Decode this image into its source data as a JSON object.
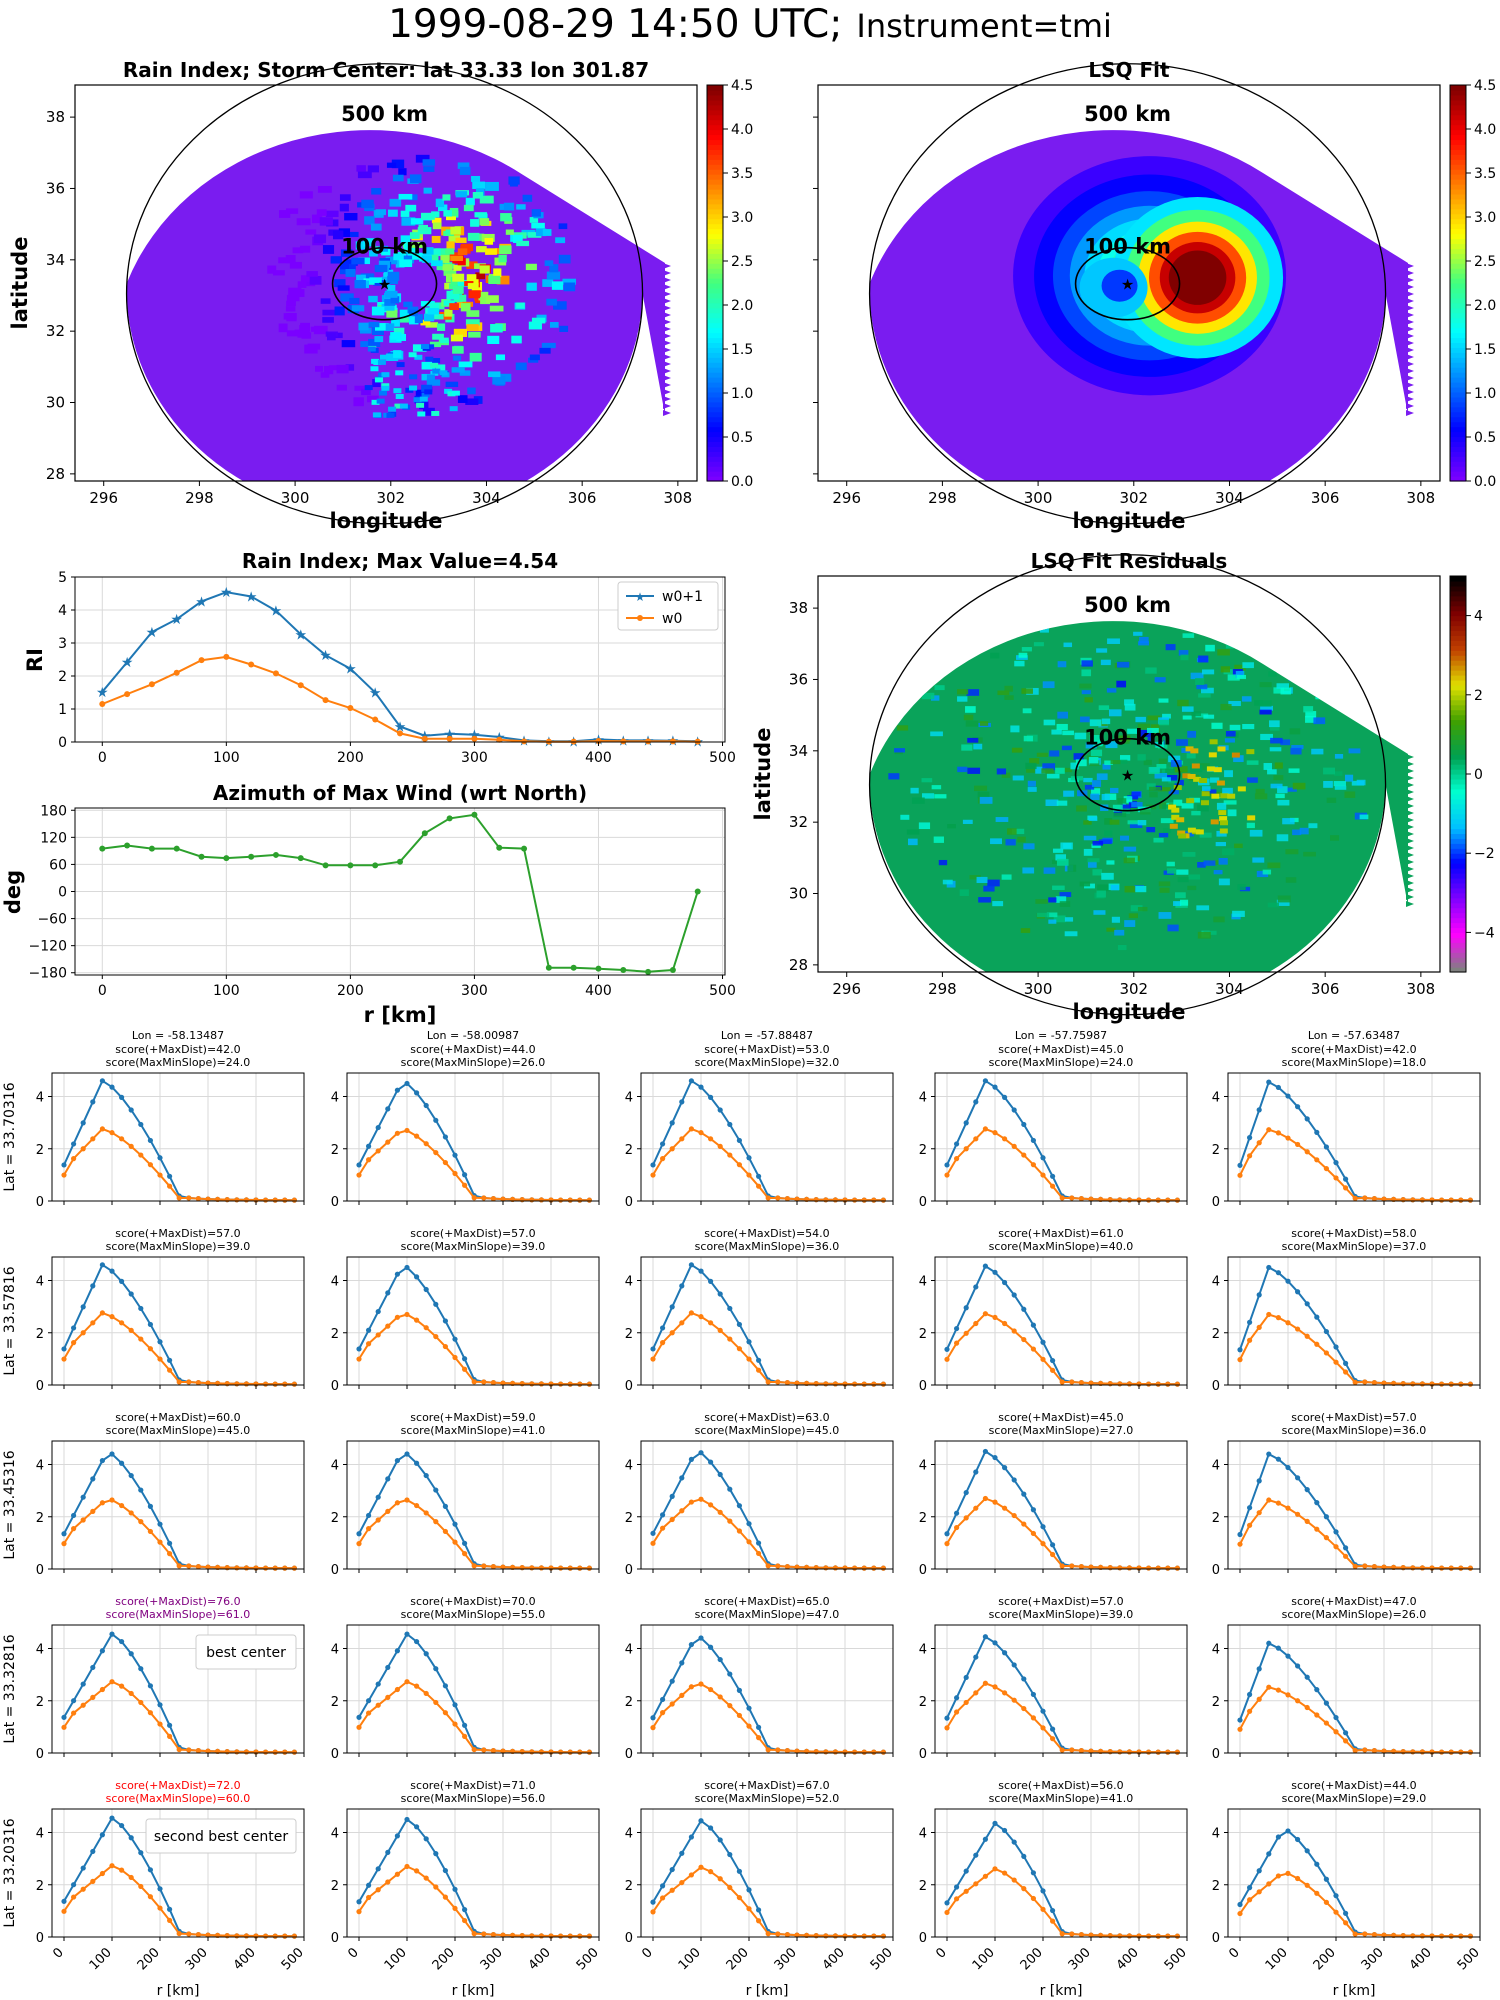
{
  "figure": {
    "title_main": "1999-08-29 14:50 UTC;",
    "title_instrument": "Instrument=tmi"
  },
  "colors": {
    "w0p1": "#1f77b4",
    "w0": "#ff7f0e",
    "azimuth": "#2ca02c",
    "rain_bg": "#7a1cf0",
    "resid_bg": "#0aa35a",
    "grid": "#d9d9d9",
    "best": "#800080",
    "second": "#ff0000"
  },
  "jet_stops": [
    "#7a00ff",
    "#0000ff",
    "#0080ff",
    "#00ffff",
    "#40ff80",
    "#ffff00",
    "#ff8000",
    "#ff0000",
    "#800000"
  ],
  "resid_stops": [
    "#808080",
    "#ff00ff",
    "#8000ff",
    "#0000ff",
    "#00c0ff",
    "#00ffd0",
    "#00a050",
    "#40a000",
    "#e0e000",
    "#c04000",
    "#800000",
    "#000000"
  ],
  "map_panels": [
    {
      "title": "Rain Index; Storm Center: lat 33.33 lon 301.87",
      "kind": "rain",
      "xlabel": "longitude",
      "ylabel": "latitude",
      "show_ylabel": true,
      "show_yticks": true
    },
    {
      "title": "LSQ Fit",
      "kind": "fit",
      "xlabel": "longitude",
      "ylabel": "",
      "show_ylabel": false,
      "show_yticks": false
    },
    {
      "title": "LSQ Fit Residuals",
      "kind": "resid",
      "xlabel": "longitude",
      "ylabel": "latitude",
      "show_ylabel": true,
      "show_yticks": true
    }
  ],
  "map_axes": {
    "xticks": [
      296,
      298,
      300,
      302,
      304,
      306,
      308
    ],
    "yticks": [
      28,
      30,
      32,
      34,
      36,
      38
    ],
    "xlim": [
      295.4,
      308.4
    ],
    "ylim": [
      27.8,
      38.9
    ],
    "center": [
      301.87,
      33.33
    ],
    "ring_500_label": "500 km",
    "ring_100_label": "100 km",
    "colorbar_rain_ticks": [
      "0.0",
      "0.5",
      "1.0",
      "1.5",
      "2.0",
      "2.5",
      "3.0",
      "3.5",
      "4.0",
      "4.5"
    ],
    "colorbar_rain_range": [
      0,
      4.5
    ],
    "colorbar_resid_ticks": [
      "−4",
      "−2",
      "0",
      "2",
      "4"
    ],
    "colorbar_resid_range": [
      -5,
      5
    ]
  },
  "chart_data": [
    {
      "type": "line",
      "title": "Rain Index; Max Value=4.54",
      "ylabel": "RI",
      "xlabel": "",
      "xlim": [
        -22,
        502
      ],
      "ylim": [
        0,
        5
      ],
      "yticks": [
        0,
        1,
        2,
        3,
        4,
        5
      ],
      "xticks": [
        0,
        100,
        200,
        300,
        400,
        500
      ],
      "legend_position": "upper right",
      "x": [
        0,
        20,
        40,
        60,
        80,
        100,
        120,
        140,
        160,
        180,
        200,
        220,
        240,
        260,
        280,
        300,
        320,
        340,
        360,
        380,
        400,
        420,
        440,
        460,
        480
      ],
      "series": [
        {
          "name": "w0+1",
          "marker": "star",
          "values": [
            1.52,
            2.42,
            3.33,
            3.72,
            4.26,
            4.54,
            4.41,
            3.98,
            3.26,
            2.63,
            2.22,
            1.5,
            0.47,
            0.19,
            0.25,
            0.22,
            0.15,
            0.05,
            0.02,
            0.02,
            0.08,
            0.05,
            0.05,
            0.04,
            0.02
          ]
        },
        {
          "name": "w0",
          "marker": "dot",
          "values": [
            1.15,
            1.45,
            1.75,
            2.1,
            2.48,
            2.58,
            2.35,
            2.08,
            1.72,
            1.27,
            1.03,
            0.68,
            0.26,
            0.1,
            0.1,
            0.1,
            0.07,
            0.02,
            0.01,
            0.01,
            0.03,
            0.02,
            0.02,
            0.02,
            0.01
          ]
        }
      ]
    },
    {
      "type": "line",
      "title": "Azimuth of Max Wind (wrt North)",
      "ylabel": "deg",
      "xlabel": "r [km]",
      "xlim": [
        -22,
        502
      ],
      "ylim": [
        -185,
        185
      ],
      "yticks": [
        -180,
        -120,
        -60,
        0,
        60,
        120,
        180
      ],
      "xticks": [
        0,
        100,
        200,
        300,
        400,
        500
      ],
      "x": [
        0,
        20,
        40,
        60,
        80,
        100,
        120,
        140,
        160,
        180,
        200,
        220,
        240,
        260,
        280,
        300,
        320,
        340,
        360,
        380,
        400,
        420,
        440,
        460,
        480
      ],
      "series": [
        {
          "values": [
            95,
            102,
            95,
            95,
            77,
            74,
            77,
            81,
            74,
            58,
            58,
            58,
            66,
            129,
            162,
            170,
            97,
            95,
            -169,
            -169,
            -171,
            -174,
            -178,
            -174,
            0
          ]
        }
      ]
    },
    {
      "type": "line",
      "grid": true,
      "xticks": [
        0,
        100,
        200,
        300,
        400,
        500
      ],
      "xlabel": "r [km]",
      "yticks": [
        0,
        2,
        4
      ],
      "xlim": [
        -25,
        500
      ],
      "ylim": [
        0,
        4.9
      ],
      "row_labels": [
        "Lat = 33.70316",
        "Lat = 33.57816",
        "Lat = 33.45316",
        "Lat = 33.32816",
        "Lat = 33.20316"
      ],
      "col_headers": [
        "Lon = -58.13487",
        "Lon = -58.00987",
        "Lon = -57.88487",
        "Lon = -57.75987",
        "Lon = -57.63487"
      ],
      "x": [
        0,
        20,
        40,
        60,
        80,
        100,
        120,
        140,
        160,
        180,
        200,
        220,
        240,
        260,
        280,
        300,
        320,
        340,
        360,
        380,
        400,
        420,
        440,
        460,
        480
      ],
      "panels": [
        {
          "s1": "score(+MaxDist)=42.0",
          "s2": "score(MaxMinSlope)=24.0",
          "c": "normal"
        },
        {
          "s1": "score(+MaxDist)=44.0",
          "s2": "score(MaxMinSlope)=26.0",
          "c": "normal"
        },
        {
          "s1": "score(+MaxDist)=53.0",
          "s2": "score(MaxMinSlope)=32.0",
          "c": "normal"
        },
        {
          "s1": "score(+MaxDist)=45.0",
          "s2": "score(MaxMinSlope)=24.0",
          "c": "normal"
        },
        {
          "s1": "score(+MaxDist)=42.0",
          "s2": "score(MaxMinSlope)=18.0",
          "c": "normal"
        },
        {
          "s1": "score(+MaxDist)=57.0",
          "s2": "score(MaxMinSlope)=39.0",
          "c": "normal"
        },
        {
          "s1": "score(+MaxDist)=57.0",
          "s2": "score(MaxMinSlope)=39.0",
          "c": "normal"
        },
        {
          "s1": "score(+MaxDist)=54.0",
          "s2": "score(MaxMinSlope)=36.0",
          "c": "normal"
        },
        {
          "s1": "score(+MaxDist)=61.0",
          "s2": "score(MaxMinSlope)=40.0",
          "c": "normal"
        },
        {
          "s1": "score(+MaxDist)=58.0",
          "s2": "score(MaxMinSlope)=37.0",
          "c": "normal"
        },
        {
          "s1": "score(+MaxDist)=60.0",
          "s2": "score(MaxMinSlope)=45.0",
          "c": "normal"
        },
        {
          "s1": "score(+MaxDist)=59.0",
          "s2": "score(MaxMinSlope)=41.0",
          "c": "normal"
        },
        {
          "s1": "score(+MaxDist)=63.0",
          "s2": "score(MaxMinSlope)=45.0",
          "c": "normal"
        },
        {
          "s1": "score(+MaxDist)=45.0",
          "s2": "score(MaxMinSlope)=27.0",
          "c": "normal"
        },
        {
          "s1": "score(+MaxDist)=57.0",
          "s2": "score(MaxMinSlope)=36.0",
          "c": "normal"
        },
        {
          "s1": "score(+MaxDist)=76.0",
          "s2": "score(MaxMinSlope)=61.0",
          "c": "best",
          "legend": "best center"
        },
        {
          "s1": "score(+MaxDist)=70.0",
          "s2": "score(MaxMinSlope)=55.0",
          "c": "normal"
        },
        {
          "s1": "score(+MaxDist)=65.0",
          "s2": "score(MaxMinSlope)=47.0",
          "c": "normal"
        },
        {
          "s1": "score(+MaxDist)=57.0",
          "s2": "score(MaxMinSlope)=39.0",
          "c": "normal"
        },
        {
          "s1": "score(+MaxDist)=47.0",
          "s2": "score(MaxMinSlope)=26.0",
          "c": "normal"
        },
        {
          "s1": "score(+MaxDist)=72.0",
          "s2": "score(MaxMinSlope)=60.0",
          "c": "second",
          "legend": "second best center"
        },
        {
          "s1": "score(+MaxDist)=71.0",
          "s2": "score(MaxMinSlope)=56.0",
          "c": "normal"
        },
        {
          "s1": "score(+MaxDist)=67.0",
          "s2": "score(MaxMinSlope)=52.0",
          "c": "normal"
        },
        {
          "s1": "score(+MaxDist)=56.0",
          "s2": "score(MaxMinSlope)=41.0",
          "c": "normal"
        },
        {
          "s1": "score(+MaxDist)=44.0",
          "s2": "score(MaxMinSlope)=29.0",
          "c": "normal"
        }
      ]
    }
  ]
}
